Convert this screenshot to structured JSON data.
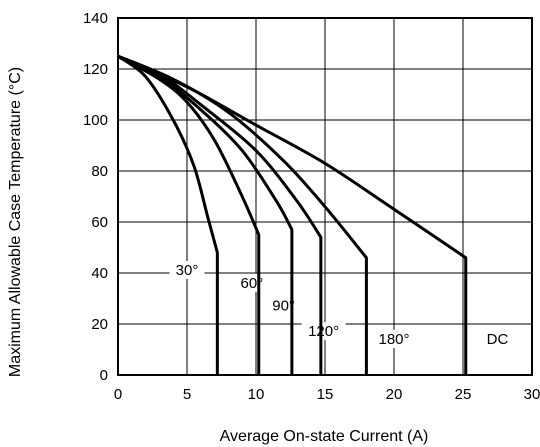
{
  "chart_data": {
    "type": "line",
    "xlabel": "Average On-state Current (A)",
    "ylabel": "Maximum Allowable Case Temperature (°C)",
    "xlim": [
      0,
      30
    ],
    "ylim": [
      0,
      140
    ],
    "xticks": [
      "0",
      "5",
      "10",
      "15",
      "20",
      "25",
      "30"
    ],
    "yticks": [
      "0",
      "20",
      "40",
      "60",
      "80",
      "100",
      "120",
      "140"
    ],
    "grid": true,
    "series": [
      {
        "name": "30°",
        "x": [
          0,
          2,
          4,
          5.5,
          6.5,
          7.2,
          7.2
        ],
        "y": [
          125,
          117,
          100,
          82,
          62,
          48,
          0
        ]
      },
      {
        "name": "60°",
        "x": [
          0,
          3,
          5,
          7,
          9,
          10.2,
          10.2
        ],
        "y": [
          125,
          116,
          107,
          92,
          70,
          55,
          0
        ]
      },
      {
        "name": "90°",
        "x": [
          0,
          3,
          6,
          9,
          11.5,
          12.6,
          12.6
        ],
        "y": [
          125,
          117,
          104,
          88,
          68,
          57,
          0
        ]
      },
      {
        "name": "120°",
        "x": [
          0,
          3,
          6,
          10,
          13,
          14.7,
          14.7
        ],
        "y": [
          125,
          118,
          106,
          88,
          68,
          54,
          0
        ]
      },
      {
        "name": "180°",
        "x": [
          0,
          4,
          8,
          12,
          15,
          18,
          18
        ],
        "y": [
          125,
          116,
          103,
          84,
          66,
          46,
          0
        ]
      },
      {
        "name": "DC",
        "x": [
          0,
          5,
          10,
          15,
          20,
          25.2,
          25.2
        ],
        "y": [
          125,
          113,
          98,
          83,
          65,
          46,
          0
        ]
      }
    ],
    "curve_labels": [
      {
        "text": "30°",
        "x": 5.0,
        "y": 40
      },
      {
        "text": "60°",
        "x": 9.7,
        "y": 35
      },
      {
        "text": "90°",
        "x": 12.0,
        "y": 26
      },
      {
        "text": "120°",
        "x": 14.9,
        "y": 16
      },
      {
        "text": "180°",
        "x": 20.0,
        "y": 13
      },
      {
        "text": "DC",
        "x": 27.5,
        "y": 13
      }
    ]
  }
}
